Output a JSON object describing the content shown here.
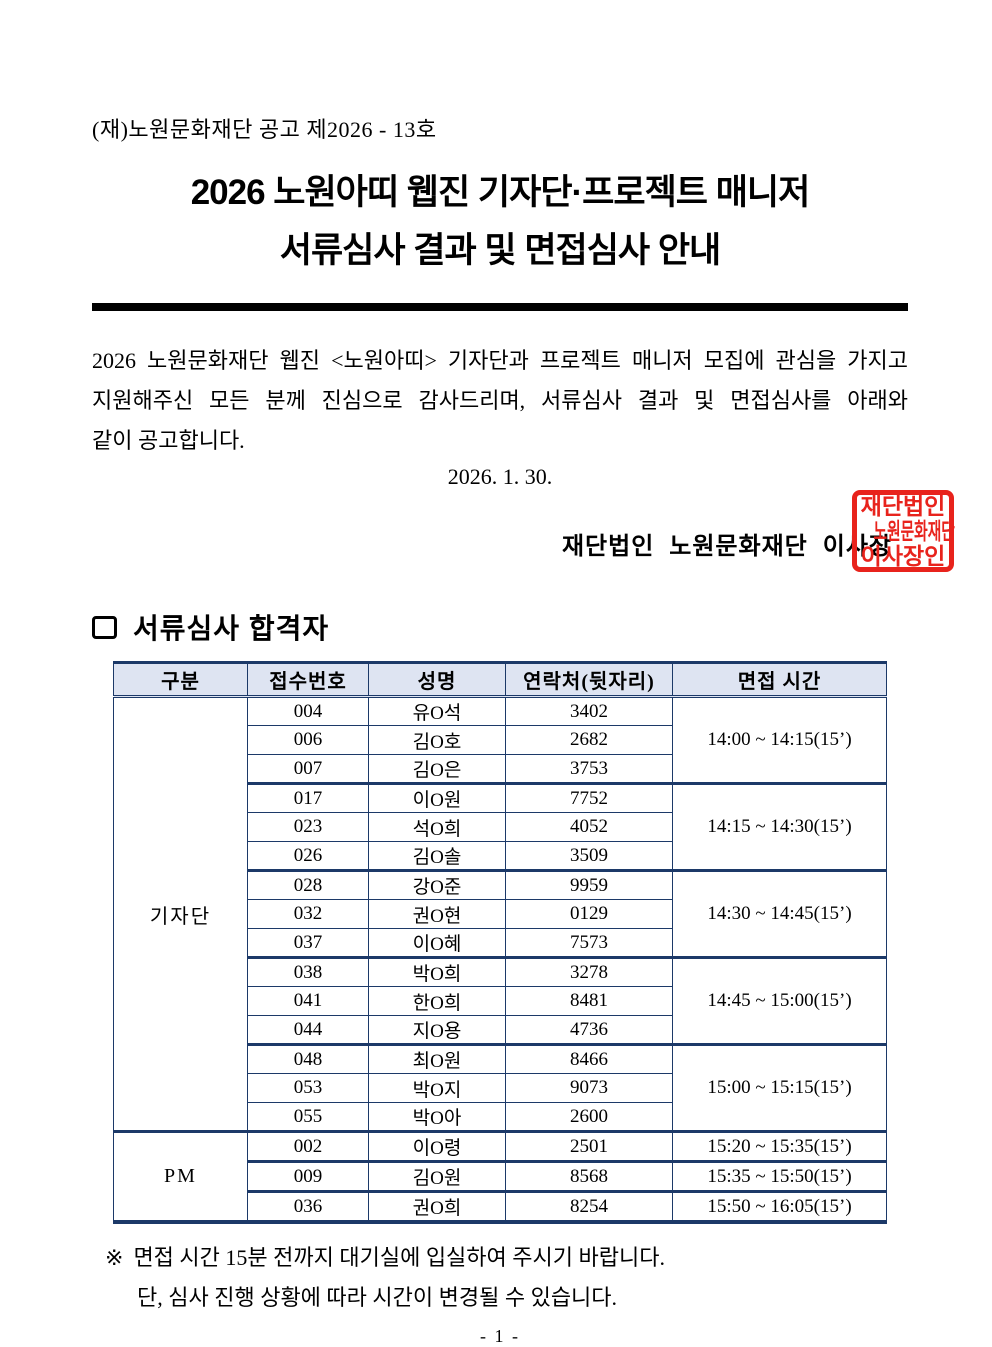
{
  "doc": {
    "number": "(재)노원문화재단 공고 제2026 - 13호",
    "title_line1": "2026 노원아띠 웹진 기자단·프로젝트 매니저",
    "title_line2": "서류심사 결과 및 면접심사 안내",
    "body_lines": [
      "2026 노원문화재단 웹진 <노원아띠> 기자단과 프로젝트 매니저 모집에 관심을 가지고",
      "지원해주신 모든 분께 진심으로 감사드리며, 서류심사 결과 및 면접심사를 아래와",
      "같이 공고합니다."
    ],
    "date": "2026. 1. 30.",
    "signer": "재단법인 노원문화재단 이사장",
    "page_number": "- 1 -"
  },
  "stamp": {
    "lines": [
      "재단법인",
      "노원문화재단",
      "이사장인"
    ]
  },
  "section": {
    "title": "서류심사 합격자"
  },
  "table": {
    "headers": [
      "구분",
      "접수번호",
      "성명",
      "연락처(뒷자리)",
      "면접 시간"
    ],
    "groups": [
      {
        "label": "기자단",
        "slots": [
          {
            "time": "14:00 ~ 14:15(15’)",
            "rows": [
              [
                "004",
                "유O석",
                "3402"
              ],
              [
                "006",
                "김O호",
                "2682"
              ],
              [
                "007",
                "김O은",
                "3753"
              ]
            ]
          },
          {
            "time": "14:15 ~ 14:30(15’)",
            "rows": [
              [
                "017",
                "이O원",
                "7752"
              ],
              [
                "023",
                "석O희",
                "4052"
              ],
              [
                "026",
                "김O솔",
                "3509"
              ]
            ]
          },
          {
            "time": "14:30 ~ 14:45(15’)",
            "rows": [
              [
                "028",
                "강O준",
                "9959"
              ],
              [
                "032",
                "권O현",
                "0129"
              ],
              [
                "037",
                "이O혜",
                "7573"
              ]
            ]
          },
          {
            "time": "14:45 ~ 15:00(15’)",
            "rows": [
              [
                "038",
                "박O희",
                "3278"
              ],
              [
                "041",
                "한O희",
                "8481"
              ],
              [
                "044",
                "지O용",
                "4736"
              ]
            ]
          },
          {
            "time": "15:00 ~ 15:15(15’)",
            "rows": [
              [
                "048",
                "최O원",
                "8466"
              ],
              [
                "053",
                "박O지",
                "9073"
              ],
              [
                "055",
                "박O아",
                "2600"
              ]
            ]
          }
        ]
      },
      {
        "label": "PM",
        "slots": [
          {
            "time": "15:20 ~ 15:35(15’)",
            "rows": [
              [
                "002",
                "이O령",
                "2501"
              ]
            ]
          },
          {
            "time": "15:35 ~ 15:50(15’)",
            "rows": [
              [
                "009",
                "김O원",
                "8568"
              ]
            ]
          },
          {
            "time": "15:50 ~ 16:05(15’)",
            "rows": [
              [
                "036",
                "권O희",
                "8254"
              ]
            ]
          }
        ]
      }
    ]
  },
  "notes": {
    "marker": "※",
    "line1": "면접 시간 15분 전까지 대기실에 입실하여 주시기 바랍니다.",
    "line2": "단, 심사 진행 상황에 따라 시간이 변경될 수 있습니다."
  },
  "colors": {
    "border_navy": "#1c3968",
    "header_bg": "#dee4f2",
    "stamp_red": "#e8231c"
  }
}
